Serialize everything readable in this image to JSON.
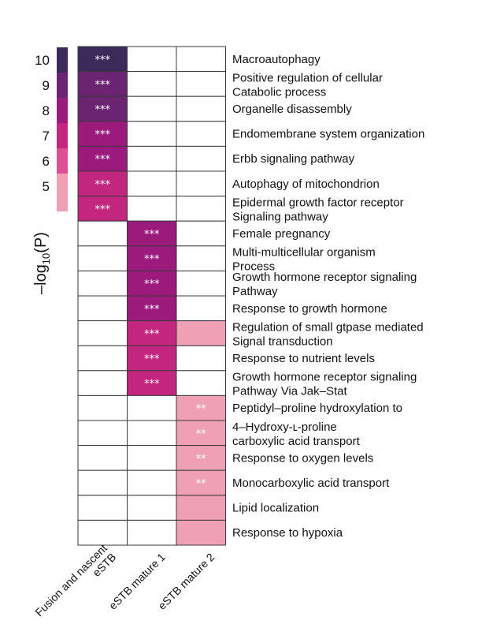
{
  "chart_data": {
    "type": "heatmap",
    "columns": [
      [
        "Fusion and nascent",
        "eSTB"
      ],
      [
        "eSTB mature 1"
      ],
      [
        "eSTB mature 2"
      ]
    ],
    "rows": [
      [
        "Macroautophagy"
      ],
      [
        "Positive regulation of cellular",
        "Catabolic process"
      ],
      [
        "Organelle disassembly"
      ],
      [
        "Endomembrane system organization"
      ],
      [
        "Erbb signaling pathway"
      ],
      [
        "Autophagy of mitochondrion"
      ],
      [
        "Epidermal growth factor receptor",
        "Signaling pathway"
      ],
      [
        "Female pregnancy"
      ],
      [
        "Multi-multicellular organism",
        "Process"
      ],
      [
        "Growth hormone receptor signaling",
        "Pathway"
      ],
      [
        "Response to growth hormone"
      ],
      [
        "Regulation of small gtpase mediated",
        "Signal transduction"
      ],
      [
        "Response to nutrient levels"
      ],
      [
        "Growth hormone receptor signaling",
        "Pathway Via Jak–Stat"
      ],
      [
        "Peptidyl–proline hydroxylation to"
      ],
      [
        "4–Hydroxy-ʟ-proline",
        "carboxylic acid transport"
      ],
      [
        "Response to oxygen levels"
      ],
      [
        "Monocarboxylic acid transport"
      ],
      [
        "Lipid localization"
      ],
      [
        "Response to hypoxia"
      ]
    ],
    "values": [
      [
        10,
        null,
        null
      ],
      [
        9,
        null,
        null
      ],
      [
        9,
        null,
        null
      ],
      [
        8,
        null,
        null
      ],
      [
        8,
        null,
        null
      ],
      [
        7,
        null,
        null
      ],
      [
        7,
        null,
        null
      ],
      [
        null,
        8,
        null
      ],
      [
        null,
        8,
        null
      ],
      [
        null,
        8,
        null
      ],
      [
        null,
        8,
        null
      ],
      [
        null,
        6.5,
        5
      ],
      [
        null,
        6.5,
        null
      ],
      [
        null,
        6.5,
        null
      ],
      [
        null,
        null,
        5
      ],
      [
        null,
        null,
        5
      ],
      [
        null,
        null,
        5
      ],
      [
        null,
        null,
        5
      ],
      [
        null,
        null,
        5
      ],
      [
        null,
        null,
        5
      ]
    ],
    "significance": [
      [
        "***",
        "",
        ""
      ],
      [
        "***",
        "",
        ""
      ],
      [
        "***",
        "",
        ""
      ],
      [
        "***",
        "",
        ""
      ],
      [
        "***",
        "",
        ""
      ],
      [
        "***",
        "",
        ""
      ],
      [
        "***",
        "",
        ""
      ],
      [
        "",
        "***",
        ""
      ],
      [
        "",
        "***",
        ""
      ],
      [
        "",
        "***",
        ""
      ],
      [
        "",
        "***",
        ""
      ],
      [
        "",
        "***",
        ""
      ],
      [
        "",
        "***",
        ""
      ],
      [
        "",
        "***",
        ""
      ],
      [
        "",
        "",
        "**"
      ],
      [
        "",
        "",
        "**"
      ],
      [
        "",
        "",
        "**"
      ],
      [
        "",
        "",
        "**"
      ],
      [
        "",
        "",
        ""
      ],
      [
        "",
        "",
        ""
      ]
    ],
    "colorbar": {
      "title_main": "–log",
      "title_sub": "10",
      "title_tail": "(P)",
      "ticks": [
        "10",
        "9",
        "8",
        "7",
        "6",
        "5"
      ],
      "tick_values": [
        10,
        9,
        8,
        7,
        6,
        5
      ],
      "range": [
        4,
        10.5
      ]
    },
    "colors": {
      "10": "#3c2a5a",
      "9": "#6b2472",
      "8": "#9b1a7c",
      "7": "#c2267f",
      "6": "#dd4e93",
      "5": "#f0a0b4",
      "border": "#3a3a3a"
    }
  }
}
